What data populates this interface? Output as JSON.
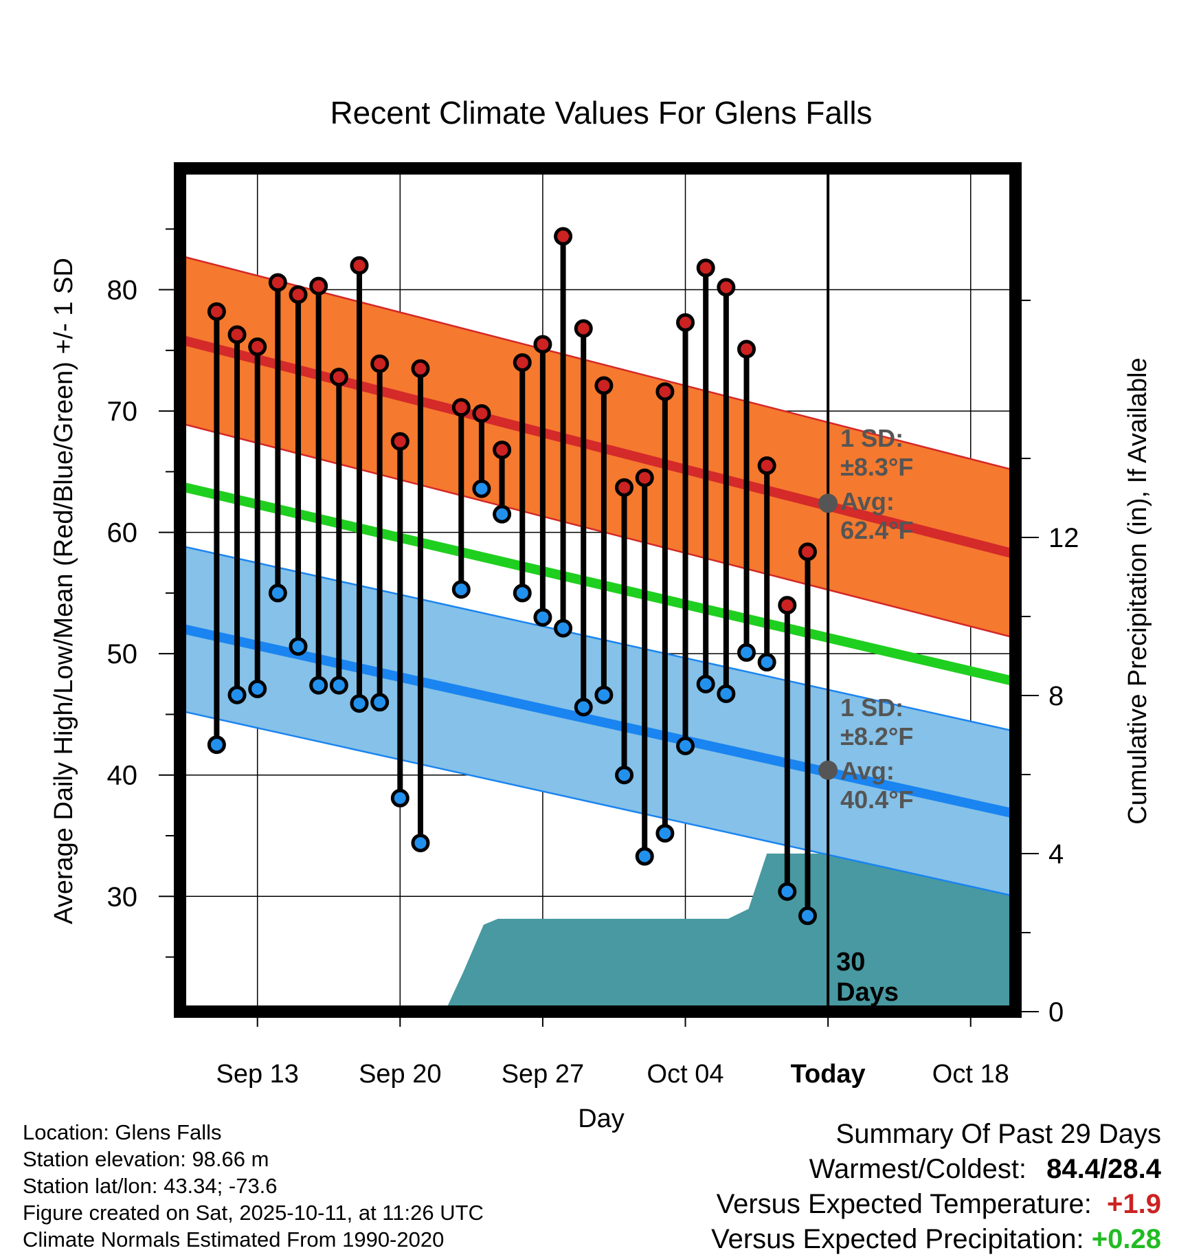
{
  "title": "Recent Climate Values For Glens Falls",
  "colors": {
    "high_band": "#f5792e",
    "high_band_edge": "#d42727",
    "high_mean_line": "#d42a2a",
    "low_band": "#85c1e8",
    "low_band_edge": "#1a84f0",
    "low_mean_line": "#1a84f0",
    "mean_line": "#1fcf1f",
    "precip_fill": "#4899a1",
    "high_dot": "#cc2222",
    "low_dot": "#2291ee",
    "avg_marker": "#555555",
    "annotation_text": "#555555",
    "temp_positive": "#cc2222",
    "precip_positive": "#22bb22"
  },
  "chart_data": {
    "type": "line",
    "title": "Recent Climate Values For Glens Falls",
    "xlabel": "Day",
    "ylabel": "Average Daily High/Low/Mean (Red/Blue/Green) +/- 1 SD",
    "y2label": "Cumulative Precipitation (in), If Available",
    "xlim_day": [
      -0.8,
      40.2
    ],
    "x_ticks": [
      {
        "day": 3,
        "label": "Sep 13"
      },
      {
        "day": 10,
        "label": "Sep 20"
      },
      {
        "day": 17,
        "label": "Sep 27"
      },
      {
        "day": 24,
        "label": "Oct 04"
      },
      {
        "day": 31,
        "label": "Today",
        "bold": true
      },
      {
        "day": 38,
        "label": "Oct 18"
      }
    ],
    "ylim": [
      20.5,
      90
    ],
    "y_ticks": [
      30,
      40,
      50,
      60,
      70,
      80
    ],
    "y2lim": [
      0,
      21.34
    ],
    "y2_ticks": [
      0,
      4,
      8,
      12
    ],
    "today_day": 31,
    "today_label": "30\nDays",
    "normal_high": {
      "start": 75.9,
      "end": 58.2
    },
    "normal_high_sd": 6.9,
    "normal_low": {
      "start": 52.1,
      "end": 36.8
    },
    "normal_low_sd": 6.8,
    "normal_mean": {
      "start": 63.8,
      "end": 47.7
    },
    "annotations": {
      "high": {
        "sd_label": "1 SD:",
        "sd_value": "±8.3°F",
        "avg_label": "Avg:",
        "avg_value": "62.4°F",
        "avg": 62.4
      },
      "low": {
        "sd_label": "1 SD:",
        "sd_value": "±8.2°F",
        "avg_label": "Avg:",
        "avg_value": "40.4°F",
        "avg": 40.4
      }
    },
    "observations": [
      {
        "day": 1,
        "high": 78.2,
        "low": 42.5
      },
      {
        "day": 2,
        "high": 76.3,
        "low": 46.6
      },
      {
        "day": 3,
        "high": 75.3,
        "low": 47.1
      },
      {
        "day": 4,
        "high": 80.6,
        "low": 55.0
      },
      {
        "day": 5,
        "high": 79.6,
        "low": 50.6
      },
      {
        "day": 6,
        "high": 80.3,
        "low": 47.4
      },
      {
        "day": 7,
        "high": 72.8,
        "low": 47.4
      },
      {
        "day": 8,
        "high": 82.0,
        "low": 45.9
      },
      {
        "day": 9,
        "high": 73.9,
        "low": 46.0
      },
      {
        "day": 10,
        "high": 67.5,
        "low": 38.1
      },
      {
        "day": 11,
        "high": 73.5,
        "low": 34.4
      },
      {
        "day": 13,
        "high": 70.3,
        "low": 55.3
      },
      {
        "day": 14,
        "high": 69.8,
        "low": 63.6
      },
      {
        "day": 15,
        "high": 66.8,
        "low": 61.5
      },
      {
        "day": 16,
        "high": 74.0,
        "low": 55.0
      },
      {
        "day": 17,
        "high": 75.5,
        "low": 53.0
      },
      {
        "day": 18,
        "high": 84.4,
        "low": 52.1
      },
      {
        "day": 19,
        "high": 76.8,
        "low": 45.6
      },
      {
        "day": 20,
        "high": 72.1,
        "low": 46.6
      },
      {
        "day": 21,
        "high": 63.7,
        "low": 40.0
      },
      {
        "day": 22,
        "high": 64.5,
        "low": 33.3
      },
      {
        "day": 23,
        "high": 71.6,
        "low": 35.2
      },
      {
        "day": 24,
        "high": 77.3,
        "low": 42.4
      },
      {
        "day": 25,
        "high": 81.8,
        "low": 47.5
      },
      {
        "day": 26,
        "high": 80.2,
        "low": 46.7
      },
      {
        "day": 27,
        "high": 75.1,
        "low": 50.1
      },
      {
        "day": 28,
        "high": 65.5,
        "low": 49.3
      },
      {
        "day": 29,
        "high": 54.0,
        "low": 30.4
      },
      {
        "day": 30,
        "high": 58.4,
        "low": 28.4
      }
    ],
    "precipitation_cumulative": [
      {
        "day": 12.2,
        "value": 0
      },
      {
        "day": 13.1,
        "value": 1.0
      },
      {
        "day": 14.1,
        "value": 2.2
      },
      {
        "day": 14.8,
        "value": 2.35
      },
      {
        "day": 26.1,
        "value": 2.35
      },
      {
        "day": 27.1,
        "value": 2.6
      },
      {
        "day": 28.0,
        "value": 4.0
      },
      {
        "day": 40.2,
        "value": 4.0
      }
    ]
  },
  "info": {
    "location": "Location: Glens Falls",
    "elevation": "Station elevation: 98.66 m",
    "latlon": "Station lat/lon: 43.34; -73.6",
    "created": "Figure created on Sat, 2025-10-11, at 11:26 UTC",
    "normals": "Climate Normals Estimated From 1990-2020"
  },
  "summary": {
    "heading": "Summary Of Past 29 Days",
    "warm_cold_label": "Warmest/Coldest:",
    "warm_cold_value": "84.4/28.4",
    "temp_label": "Versus Expected Temperature:",
    "temp_value": "+1.9",
    "precip_label": "Versus Expected Precipitation:",
    "precip_value": "+0.28"
  }
}
